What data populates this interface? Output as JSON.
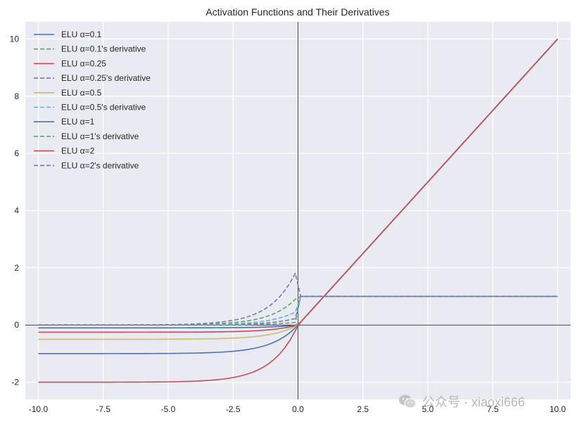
{
  "chart_data": {
    "type": "line",
    "title": "Activation Functions and Their Derivatives",
    "xlabel": "",
    "ylabel": "",
    "xlim": [
      -10.5,
      10.5
    ],
    "ylim": [
      -2.6,
      10.6
    ],
    "x_ticks": [
      -10,
      -7.5,
      -5,
      -2.5,
      0,
      2.5,
      5,
      7.5,
      10
    ],
    "x_tick_labels": [
      "-10.0",
      "-7.5",
      "-5.0",
      "-2.5",
      "0.0",
      "2.5",
      "5.0",
      "7.5",
      "10.0"
    ],
    "y_ticks": [
      -2,
      0,
      2,
      4,
      6,
      8,
      10
    ],
    "y_tick_labels": [
      "-2",
      "0",
      "2",
      "4",
      "6",
      "8",
      "10"
    ],
    "grid": true,
    "legend_position": "top-left",
    "x_domain": [
      -10,
      10
    ],
    "reference_lines": [
      "x=0",
      "y=0"
    ],
    "series": [
      {
        "name": "ELU α=0.1",
        "kind": "function",
        "alpha": 0.1,
        "color": "#4c72b0",
        "dash": "solid"
      },
      {
        "name": "ELU α=0.1's derivative",
        "kind": "derivative",
        "alpha": 0.1,
        "color": "#55a868",
        "dash": "dashed"
      },
      {
        "name": "ELU α=0.25",
        "kind": "function",
        "alpha": 0.25,
        "color": "#c44e52",
        "dash": "solid"
      },
      {
        "name": "ELU α=0.25's derivative",
        "kind": "derivative",
        "alpha": 0.25,
        "color": "#8172b2",
        "dash": "dashed"
      },
      {
        "name": "ELU α=0.5",
        "kind": "function",
        "alpha": 0.5,
        "color": "#ccb974",
        "dash": "solid"
      },
      {
        "name": "ELU α=0.5's derivative",
        "kind": "derivative",
        "alpha": 0.5,
        "color": "#64b5cd",
        "dash": "dashed"
      },
      {
        "name": "ELU α=1",
        "kind": "function",
        "alpha": 1,
        "color": "#4c72b0",
        "dash": "solid"
      },
      {
        "name": "ELU α=1's derivative",
        "kind": "derivative",
        "alpha": 1,
        "color": "#55a868",
        "dash": "dashed"
      },
      {
        "name": "ELU α=2",
        "kind": "function",
        "alpha": 2,
        "color": "#c44e52",
        "dash": "solid"
      },
      {
        "name": "ELU α=2's derivative",
        "kind": "derivative",
        "alpha": 2,
        "color": "#8172b2",
        "dash": "dashed"
      }
    ]
  },
  "watermark": {
    "icon": "wechat-icon",
    "text": "公众号 · xiaoxi666"
  }
}
